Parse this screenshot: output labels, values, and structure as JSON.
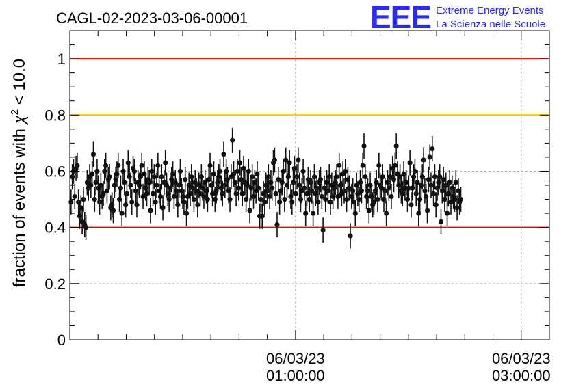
{
  "header": {
    "run_title": "CAGL-02-2023-03-06-00001",
    "logo_text": "EEE",
    "logo_line1": "Extreme Energy Events",
    "logo_line2": "La Scienza nelle Scuole"
  },
  "colors": {
    "logo_blue": "#2a2aff",
    "threshold_red": "#e00000",
    "threshold_orange": "#ffc000",
    "marker": "#111111",
    "grid": "#aaaaaa"
  },
  "chart_data": {
    "type": "scatter",
    "title": "CAGL-02-2023-03-06-00001",
    "ylabel": "fraction of events with χ² < 10.0",
    "ylabel_prefix": "fraction of events with ",
    "ylabel_chi": "χ",
    "ylabel_sup": "2",
    "ylabel_suffix": " < 10.0",
    "ylim": [
      0,
      1.1
    ],
    "yticks": [
      0,
      0.2,
      0.4,
      0.6,
      0.8,
      1
    ],
    "ytick_labels": [
      "0",
      "0.2",
      "0.4",
      "0.6",
      "0.8",
      "1"
    ],
    "xlim_hours": [
      -1.0,
      3.25
    ],
    "xticks": [
      {
        "hour": 1,
        "label_line1": "06/03/23",
        "label_line2": "01:00:00"
      },
      {
        "hour": 3,
        "label_line1": "06/03/23",
        "label_line2": "03:00:00"
      }
    ],
    "grid": true,
    "reference_lines": [
      {
        "y": 1.0,
        "color": "#e00000"
      },
      {
        "y": 0.8,
        "color": "#ffc000"
      },
      {
        "y": 0.4,
        "color": "#e00000"
      }
    ],
    "error_bar": 0.045,
    "series": [
      {
        "x_start_hour": -1.0,
        "x_step_hour": 0.011,
        "values": [
          0.55,
          0.49,
          0.58,
          0.6,
          0.51,
          0.61,
          0.62,
          0.49,
          0.44,
          0.47,
          0.42,
          0.5,
          0.41,
          0.4,
          0.56,
          0.54,
          0.58,
          0.55,
          0.59,
          0.66,
          0.5,
          0.56,
          0.6,
          0.54,
          0.49,
          0.55,
          0.51,
          0.52,
          0.6,
          0.62,
          0.53,
          0.57,
          0.58,
          0.47,
          0.48,
          0.46,
          0.55,
          0.57,
          0.59,
          0.62,
          0.5,
          0.54,
          0.45,
          0.6,
          0.56,
          0.48,
          0.52,
          0.63,
          0.58,
          0.55,
          0.49,
          0.61,
          0.6,
          0.53,
          0.48,
          0.56,
          0.55,
          0.58,
          0.62,
          0.51,
          0.59,
          0.54,
          0.52,
          0.57,
          0.56,
          0.46,
          0.6,
          0.52,
          0.58,
          0.49,
          0.55,
          0.62,
          0.53,
          0.51,
          0.58,
          0.47,
          0.56,
          0.63,
          0.55,
          0.52,
          0.5,
          0.54,
          0.57,
          0.59,
          0.51,
          0.56,
          0.53,
          0.48,
          0.55,
          0.6,
          0.53,
          0.51,
          0.49,
          0.57,
          0.45,
          0.51,
          0.55,
          0.52,
          0.58,
          0.54,
          0.5,
          0.56,
          0.53,
          0.48,
          0.55,
          0.52,
          0.58,
          0.54,
          0.51,
          0.56,
          0.53,
          0.5,
          0.57,
          0.62,
          0.55,
          0.52,
          0.59,
          0.5,
          0.53,
          0.56,
          0.58,
          0.6,
          0.54,
          0.52,
          0.66,
          0.55,
          0.6,
          0.57,
          0.53,
          0.5,
          0.58,
          0.71,
          0.59,
          0.56,
          0.52,
          0.6,
          0.54,
          0.63,
          0.57,
          0.52,
          0.61,
          0.56,
          0.5,
          0.55,
          0.6,
          0.46,
          0.54,
          0.58,
          0.51,
          0.56,
          0.53,
          0.59,
          0.54,
          0.44,
          0.5,
          0.44,
          0.52,
          0.49,
          0.55,
          0.53,
          0.58,
          0.51,
          0.56,
          0.54,
          0.63,
          0.64,
          0.52,
          0.41,
          0.57,
          0.49,
          0.53,
          0.56,
          0.6,
          0.5,
          0.64,
          0.55,
          0.58,
          0.63,
          0.51,
          0.49,
          0.56,
          0.61,
          0.52,
          0.58,
          0.64,
          0.55,
          0.5,
          0.53,
          0.6,
          0.54,
          0.45,
          0.52,
          0.57,
          0.5,
          0.56,
          0.53,
          0.45,
          0.58,
          0.52,
          0.54,
          0.49,
          0.56,
          0.57,
          0.51,
          0.39,
          0.54,
          0.5,
          0.56,
          0.53,
          0.58,
          0.49,
          0.55,
          0.51,
          0.54,
          0.56,
          0.58,
          0.51,
          0.62,
          0.55,
          0.52,
          0.59,
          0.53,
          0.6,
          0.5,
          0.57,
          0.54,
          0.37,
          0.51,
          0.53,
          0.49,
          0.45,
          0.55,
          0.52,
          0.5,
          0.56,
          0.53,
          0.62,
          0.69,
          0.58,
          0.51,
          0.53,
          0.46,
          0.55,
          0.51,
          0.48,
          0.49,
          0.53,
          0.56,
          0.5,
          0.62,
          0.55,
          0.54,
          0.58,
          0.5,
          0.53,
          0.45,
          0.56,
          0.54,
          0.58,
          0.51,
          0.61,
          0.57,
          0.62,
          0.69,
          0.59,
          0.55,
          0.58,
          0.53,
          0.52,
          0.59,
          0.54,
          0.56,
          0.5,
          0.54,
          0.63,
          0.48,
          0.54,
          0.58,
          0.6,
          0.52,
          0.56,
          0.45,
          0.5,
          0.55,
          0.58,
          0.64,
          0.53,
          0.51,
          0.46,
          0.57,
          0.65,
          0.55,
          0.68,
          0.52,
          0.58,
          0.48,
          0.54,
          0.56,
          0.58,
          0.42,
          0.53,
          0.57,
          0.5,
          0.55,
          0.45,
          0.52,
          0.56,
          0.49,
          0.54,
          0.51,
          0.5,
          0.56,
          0.47,
          0.53,
          0.49,
          0.5
        ]
      }
    ]
  }
}
